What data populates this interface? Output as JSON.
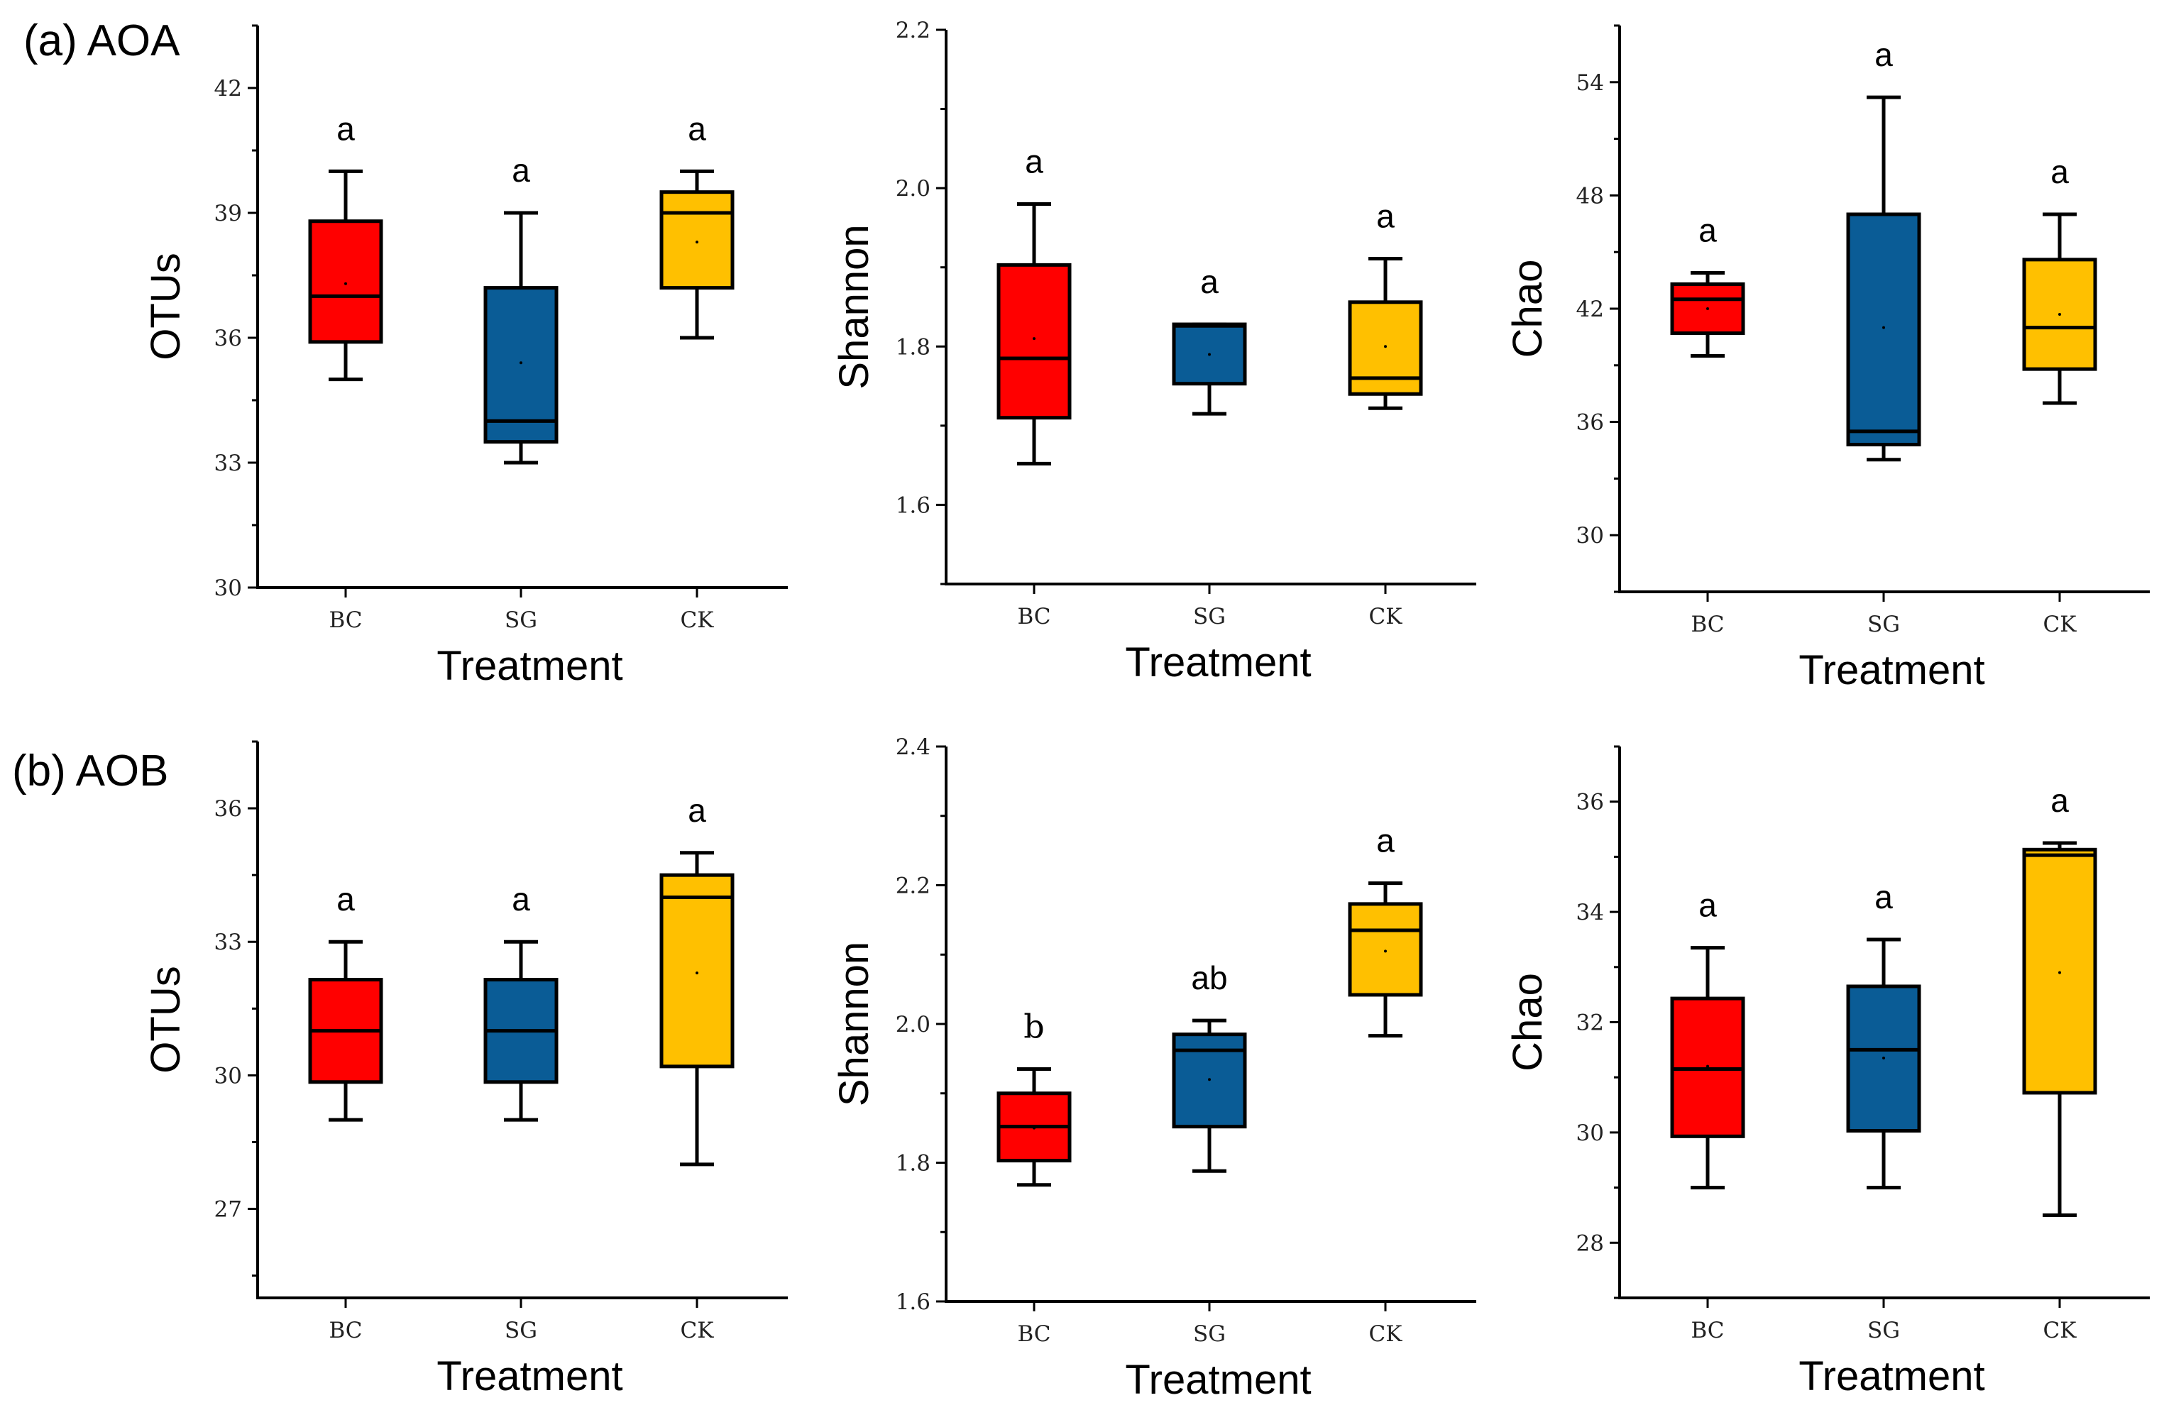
{
  "rows": [
    {
      "label": "(a) AOA"
    },
    {
      "label": "(b) AOB"
    }
  ],
  "treatment_colors": {
    "BC": "#ff0000",
    "SG": "#0a5c96",
    "CK": "#ffc000"
  },
  "chart_data": [
    {
      "type": "box",
      "row": 0,
      "col": 0,
      "xlabel": "Treatment",
      "ylabel": "OTUs",
      "categories": [
        "BC",
        "SG",
        "CK"
      ],
      "ylim": [
        30,
        43.5
      ],
      "yticks": [
        30,
        33,
        36,
        39,
        42
      ],
      "ytick_labels": [
        "30",
        "33",
        "36",
        "39",
        "42"
      ],
      "minor_ticks": true,
      "boxes": [
        {
          "cat": "BC",
          "whisker_low": 35,
          "q1": 35.9,
          "median": 37,
          "q3": 38.8,
          "whisker_high": 40,
          "mean": 37.3,
          "letter": "a"
        },
        {
          "cat": "SG",
          "whisker_low": 33,
          "q1": 33.5,
          "median": 34,
          "q3": 37.2,
          "whisker_high": 39,
          "mean": 35.4,
          "letter": "a"
        },
        {
          "cat": "CK",
          "whisker_low": 36,
          "q1": 37.2,
          "median": 39,
          "q3": 39.5,
          "whisker_high": 40,
          "mean": 38.3,
          "letter": "a"
        }
      ]
    },
    {
      "type": "box",
      "row": 0,
      "col": 1,
      "xlabel": "Treatment",
      "ylabel": "Shannon",
      "categories": [
        "BC",
        "SG",
        "CK"
      ],
      "ylim": [
        1.5,
        2.2
      ],
      "yticks": [
        1.6,
        1.8,
        2.0,
        2.2
      ],
      "ytick_labels": [
        "1.6",
        "1.8",
        "2.0",
        "2.2"
      ],
      "minor_ticks": true,
      "boxes": [
        {
          "cat": "BC",
          "whisker_low": 1.652,
          "q1": 1.71,
          "median": 1.785,
          "q3": 1.903,
          "whisker_high": 1.98,
          "mean": 1.81,
          "letter": "a"
        },
        {
          "cat": "SG",
          "whisker_low": 1.715,
          "q1": 1.753,
          "median": 1.826,
          "q3": 1.828,
          "whisker_high": 1.828,
          "mean": 1.79,
          "letter": "a"
        },
        {
          "cat": "CK",
          "whisker_low": 1.722,
          "q1": 1.74,
          "median": 1.76,
          "q3": 1.856,
          "whisker_high": 1.911,
          "mean": 1.8,
          "letter": "a"
        }
      ]
    },
    {
      "type": "box",
      "row": 0,
      "col": 2,
      "xlabel": "Treatment",
      "ylabel": "Chao",
      "categories": [
        "BC",
        "SG",
        "CK"
      ],
      "ylim": [
        27,
        57
      ],
      "yticks": [
        30,
        36,
        42,
        48,
        54
      ],
      "ytick_labels": [
        "30",
        "36",
        "42",
        "48",
        "54"
      ],
      "minor_ticks": true,
      "boxes": [
        {
          "cat": "BC",
          "whisker_low": 39.5,
          "q1": 40.7,
          "median": 42.5,
          "q3": 43.3,
          "whisker_high": 43.9,
          "mean": 42,
          "letter": "a"
        },
        {
          "cat": "SG",
          "whisker_low": 34,
          "q1": 34.8,
          "median": 35.5,
          "q3": 47,
          "whisker_high": 53.2,
          "mean": 41,
          "letter": "a"
        },
        {
          "cat": "CK",
          "whisker_low": 37,
          "q1": 38.8,
          "median": 41,
          "q3": 44.6,
          "whisker_high": 47,
          "mean": 41.7,
          "letter": "a"
        }
      ]
    },
    {
      "type": "box",
      "row": 1,
      "col": 0,
      "xlabel": "Treatment",
      "ylabel": "OTUs",
      "categories": [
        "BC",
        "SG",
        "CK"
      ],
      "ylim": [
        25,
        37.5
      ],
      "yticks": [
        27,
        30,
        33,
        36
      ],
      "ytick_labels": [
        "27",
        "30",
        "33",
        "36"
      ],
      "minor_ticks": true,
      "boxes": [
        {
          "cat": "BC",
          "whisker_low": 29,
          "q1": 29.85,
          "median": 31,
          "q3": 32.15,
          "whisker_high": 33,
          "mean": 31,
          "letter": "a"
        },
        {
          "cat": "SG",
          "whisker_low": 29,
          "q1": 29.85,
          "median": 31,
          "q3": 32.15,
          "whisker_high": 33,
          "mean": 31,
          "letter": "a"
        },
        {
          "cat": "CK",
          "whisker_low": 28,
          "q1": 30.2,
          "median": 34,
          "q3": 34.5,
          "whisker_high": 35,
          "mean": 32.3,
          "letter": "a"
        }
      ]
    },
    {
      "type": "box",
      "row": 1,
      "col": 1,
      "xlabel": "Treatment",
      "ylabel": "Shannon",
      "categories": [
        "BC",
        "SG",
        "CK"
      ],
      "ylim": [
        1.6,
        2.4
      ],
      "yticks": [
        1.6,
        1.8,
        2.0,
        2.2,
        2.4
      ],
      "ytick_labels": [
        "1.6",
        "1.8",
        "2.0",
        "2.2",
        "2.4"
      ],
      "minor_ticks": true,
      "boxes": [
        {
          "cat": "BC",
          "whisker_low": 1.768,
          "q1": 1.803,
          "median": 1.852,
          "q3": 1.9,
          "whisker_high": 1.935,
          "mean": 1.85,
          "letter": "b",
          "letter_serif": true
        },
        {
          "cat": "SG",
          "whisker_low": 1.788,
          "q1": 1.852,
          "median": 1.962,
          "q3": 1.985,
          "whisker_high": 2.005,
          "mean": 1.92,
          "letter": "ab"
        },
        {
          "cat": "CK",
          "whisker_low": 1.983,
          "q1": 2.042,
          "median": 2.135,
          "q3": 2.173,
          "whisker_high": 2.203,
          "mean": 2.105,
          "letter": "a"
        }
      ]
    },
    {
      "type": "box",
      "row": 1,
      "col": 2,
      "xlabel": "Treatment",
      "ylabel": "Chao",
      "categories": [
        "BC",
        "SG",
        "CK"
      ],
      "ylim": [
        27,
        37
      ],
      "yticks": [
        28,
        30,
        32,
        34,
        36
      ],
      "ytick_labels": [
        "28",
        "30",
        "32",
        "34",
        "36"
      ],
      "minor_ticks": true,
      "boxes": [
        {
          "cat": "BC",
          "whisker_low": 29,
          "q1": 29.93,
          "median": 31.15,
          "q3": 32.43,
          "whisker_high": 33.35,
          "mean": 31.2,
          "letter": "a"
        },
        {
          "cat": "SG",
          "whisker_low": 29,
          "q1": 30.03,
          "median": 31.5,
          "q3": 32.65,
          "whisker_high": 33.5,
          "mean": 31.35,
          "letter": "a"
        },
        {
          "cat": "CK",
          "whisker_low": 28.5,
          "q1": 30.72,
          "median": 35.03,
          "q3": 35.13,
          "whisker_high": 35.25,
          "mean": 32.9,
          "letter": "a"
        }
      ]
    }
  ]
}
